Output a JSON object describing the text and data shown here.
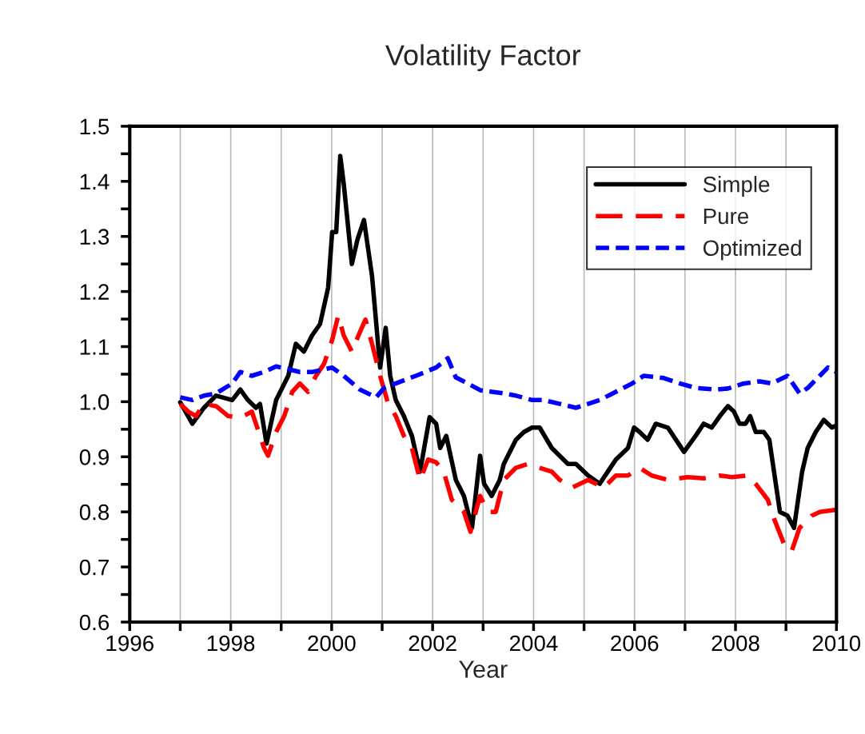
{
  "chart_data": {
    "type": "line",
    "title": "Volatility Factor",
    "xlabel": "Year",
    "xlim": [
      1996,
      2010
    ],
    "ylim": [
      0.6,
      1.5
    ],
    "xticks": [
      1996,
      {
        "value": 1997,
        "label": null
      },
      1998,
      {
        "value": 1999,
        "label": null
      },
      2000,
      {
        "value": 2001,
        "label": null
      },
      2002,
      {
        "value": 2003,
        "label": null
      },
      2004,
      {
        "value": 2005,
        "label": null
      },
      2006,
      {
        "value": 2007,
        "label": null
      },
      2008,
      {
        "value": 2009,
        "label": null
      },
      2010
    ],
    "yticks": [
      {
        "value": 0.6,
        "label": "0.6"
      },
      {
        "value": 0.65,
        "label": null
      },
      {
        "value": 0.7,
        "label": "0.7"
      },
      {
        "value": 0.75,
        "label": null
      },
      {
        "value": 0.8,
        "label": "0.8"
      },
      {
        "value": 0.85,
        "label": null
      },
      {
        "value": 0.9,
        "label": "0.9"
      },
      {
        "value": 0.95,
        "label": null
      },
      {
        "value": 1.0,
        "label": "1.0"
      },
      {
        "value": 1.05,
        "label": null
      },
      {
        "value": 1.1,
        "label": "1.1"
      },
      {
        "value": 1.15,
        "label": null
      },
      {
        "value": 1.2,
        "label": "1.2"
      },
      {
        "value": 1.25,
        "label": null
      },
      {
        "value": 1.3,
        "label": "1.3"
      },
      {
        "value": 1.35,
        "label": null
      },
      {
        "value": 1.4,
        "label": "1.4"
      },
      {
        "value": 1.45,
        "label": null
      },
      {
        "value": 1.5,
        "label": "1.5"
      }
    ],
    "grid": "x",
    "legend": "top right",
    "series": [
      {
        "name": "Simple",
        "color": "#000000",
        "line_style": "solid",
        "x": [
          1997.0,
          1997.24,
          1997.47,
          1997.71,
          1998.03,
          1998.19,
          1998.34,
          1998.5,
          1998.58,
          1998.71,
          1998.9,
          1999.14,
          1999.29,
          1999.45,
          1999.61,
          1999.77,
          1999.93,
          2000.01,
          2000.09,
          2000.17,
          2000.24,
          2000.4,
          2000.51,
          2000.64,
          2000.8,
          2000.96,
          2001.07,
          2001.16,
          2001.27,
          2001.43,
          2001.59,
          2001.75,
          2001.94,
          2002.07,
          2002.15,
          2002.27,
          2002.46,
          2002.62,
          2002.78,
          2002.94,
          2003.02,
          2003.17,
          2003.33,
          2003.41,
          2003.65,
          2003.81,
          2003.97,
          2004.12,
          2004.36,
          2004.68,
          2004.84,
          2005.08,
          2005.31,
          2005.47,
          2005.63,
          2005.87,
          2005.99,
          2006.1,
          2006.26,
          2006.42,
          2006.66,
          2006.98,
          2007.21,
          2007.37,
          2007.53,
          2007.69,
          2007.85,
          2007.97,
          2008.08,
          2008.2,
          2008.29,
          2008.4,
          2008.56,
          2008.67,
          2008.88,
          2009.03,
          2009.16,
          2009.32,
          2009.43,
          2009.59,
          2009.75,
          2009.91,
          2010.0
        ],
        "values": [
          0.999,
          0.96,
          0.989,
          1.011,
          1.003,
          1.022,
          1.003,
          0.989,
          0.996,
          0.924,
          1.003,
          1.047,
          1.105,
          1.091,
          1.12,
          1.141,
          1.207,
          1.308,
          1.308,
          1.446,
          1.395,
          1.25,
          1.294,
          1.33,
          1.228,
          1.062,
          1.134,
          1.047,
          1.003,
          0.974,
          0.938,
          0.873,
          0.972,
          0.96,
          0.916,
          0.938,
          0.858,
          0.829,
          0.771,
          0.902,
          0.851,
          0.829,
          0.858,
          0.887,
          0.931,
          0.945,
          0.953,
          0.953,
          0.916,
          0.887,
          0.887,
          0.866,
          0.851,
          0.873,
          0.895,
          0.916,
          0.953,
          0.945,
          0.931,
          0.96,
          0.953,
          0.909,
          0.938,
          0.96,
          0.953,
          0.974,
          0.992,
          0.982,
          0.96,
          0.96,
          0.974,
          0.945,
          0.945,
          0.931,
          0.8,
          0.793,
          0.771,
          0.873,
          0.916,
          0.945,
          0.967,
          0.953,
          0.957
        ]
      },
      {
        "name": "Pure",
        "color": "#ff0000",
        "line_style": "dashed",
        "x": [
          1997.0,
          1997.16,
          1997.31,
          1997.47,
          1997.71,
          1997.95,
          1998.19,
          1998.42,
          1998.66,
          1998.74,
          1998.9,
          1999.06,
          1999.22,
          1999.37,
          1999.53,
          1999.69,
          1999.85,
          2000.01,
          2000.13,
          2000.24,
          2000.4,
          2000.53,
          2000.67,
          2000.8,
          2000.96,
          2001.12,
          2001.27,
          2001.43,
          2001.59,
          2001.75,
          2001.91,
          2002.07,
          2002.22,
          2002.38,
          2002.62,
          2002.75,
          2002.94,
          2003.1,
          2003.25,
          2003.41,
          2003.65,
          2003.89,
          2004.12,
          2004.36,
          2004.52,
          2004.76,
          2005.08,
          2005.39,
          2005.63,
          2005.87,
          2006.1,
          2006.34,
          2006.66,
          2007.05,
          2007.37,
          2007.69,
          2007.93,
          2008.24,
          2008.4,
          2008.64,
          2008.77,
          2008.96,
          2009.11,
          2009.27,
          2009.51,
          2009.67,
          2010.0
        ],
        "values": [
          0.996,
          0.982,
          0.974,
          0.996,
          0.992,
          0.974,
          0.971,
          0.982,
          0.916,
          0.902,
          0.945,
          0.974,
          1.018,
          1.033,
          1.018,
          1.047,
          1.069,
          1.112,
          1.156,
          1.12,
          1.091,
          1.12,
          1.149,
          1.105,
          1.047,
          0.996,
          0.974,
          0.938,
          0.916,
          0.858,
          0.895,
          0.89,
          0.873,
          0.822,
          0.8,
          0.764,
          0.829,
          0.8,
          0.8,
          0.858,
          0.88,
          0.887,
          0.88,
          0.873,
          0.858,
          0.844,
          0.858,
          0.844,
          0.866,
          0.866,
          0.88,
          0.866,
          0.858,
          0.863,
          0.861,
          0.866,
          0.863,
          0.866,
          0.851,
          0.822,
          0.786,
          0.742,
          0.728,
          0.771,
          0.793,
          0.8,
          0.804
        ]
      },
      {
        "name": "Optimized",
        "color": "#0000ff",
        "line_style": "dotted",
        "x": [
          1997.0,
          1997.24,
          1997.47,
          1997.71,
          1998.03,
          1998.19,
          1998.42,
          1998.66,
          1998.9,
          1999.14,
          1999.37,
          1999.61,
          1999.77,
          2000.01,
          2000.24,
          2000.56,
          2000.88,
          2001.04,
          2001.35,
          2001.67,
          2002.07,
          2002.3,
          2002.46,
          2002.7,
          2002.94,
          2003.17,
          2003.41,
          2003.65,
          2003.97,
          2004.2,
          2004.52,
          2004.84,
          2005.08,
          2005.31,
          2005.63,
          2005.95,
          2006.18,
          2006.58,
          2006.9,
          2007.21,
          2007.61,
          2007.85,
          2008.16,
          2008.48,
          2008.72,
          2009.03,
          2009.27,
          2009.43,
          2009.67,
          2009.83,
          2010.0
        ],
        "values": [
          1.008,
          1.003,
          1.011,
          1.015,
          1.033,
          1.054,
          1.047,
          1.054,
          1.064,
          1.059,
          1.054,
          1.054,
          1.057,
          1.062,
          1.047,
          1.022,
          1.008,
          1.025,
          1.036,
          1.047,
          1.062,
          1.079,
          1.044,
          1.033,
          1.021,
          1.018,
          1.015,
          1.011,
          1.003,
          1.003,
          0.996,
          0.989,
          0.996,
          1.003,
          1.018,
          1.033,
          1.047,
          1.043,
          1.033,
          1.025,
          1.022,
          1.024,
          1.033,
          1.037,
          1.033,
          1.047,
          1.015,
          1.025,
          1.047,
          1.062,
          1.054
        ]
      }
    ]
  }
}
